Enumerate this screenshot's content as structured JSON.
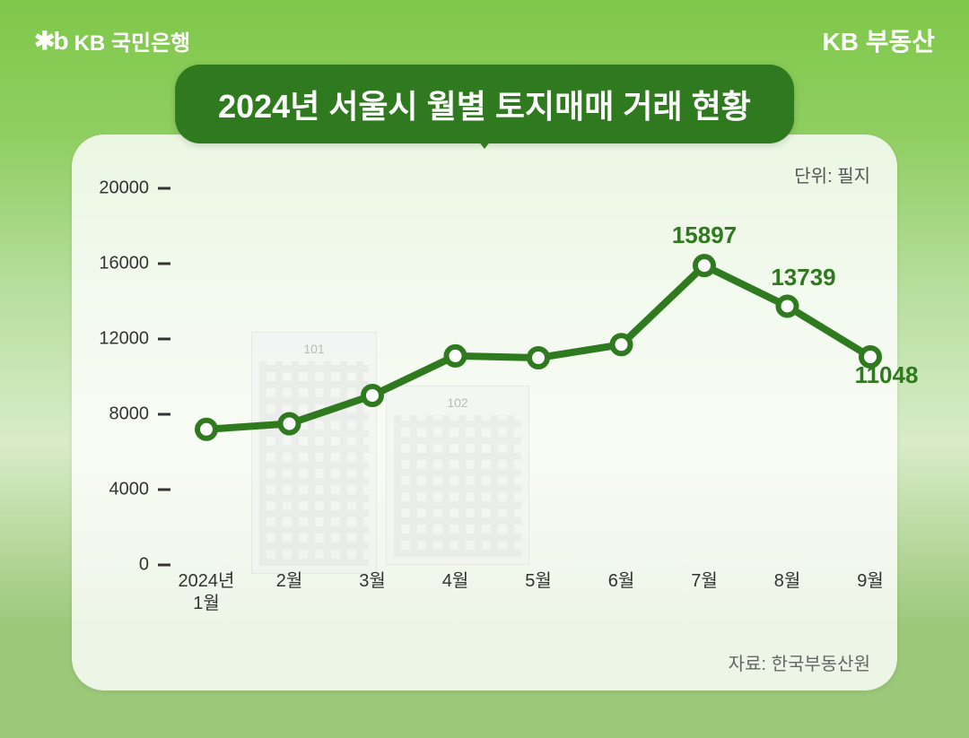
{
  "header": {
    "brand_logo": "✱b",
    "brand_left": "KB 국민은행",
    "brand_right": "KB 부동산"
  },
  "title": "2024년 서울시 월별 토지매매 거래 현황",
  "unit_label": "단위: 필지",
  "source_label": "자료: 한국부동산원",
  "chart": {
    "type": "line",
    "line_color": "#2f7a1f",
    "line_width": 8,
    "marker_fill": "#ffffff",
    "marker_stroke": "#2f7a1f",
    "marker_stroke_width": 6,
    "marker_radius": 10,
    "background_color": "rgba(255,255,255,0.82)",
    "title_color": "#ffffff",
    "title_bg": "#2f7a1f",
    "title_fontsize": 36,
    "axis_text_color": "#333333",
    "axis_fontsize": 20,
    "data_label_color": "#2f7a1f",
    "data_label_fontsize": 26,
    "ylim": [
      0,
      20000
    ],
    "ytick_step": 4000,
    "y_ticks": [
      0,
      4000,
      8000,
      12000,
      16000,
      20000
    ],
    "categories": [
      "2024년\n1월",
      "2월",
      "3월",
      "4월",
      "5월",
      "6월",
      "7월",
      "8월",
      "9월"
    ],
    "values": [
      7200,
      7500,
      9000,
      11100,
      11000,
      11700,
      15897,
      13739,
      11048
    ],
    "point_labels": {
      "6": "15897",
      "7": "13739",
      "8": "11048"
    },
    "label_offsets": {
      "6": {
        "dx": 0,
        "dy": -18
      },
      "7": {
        "dx": 18,
        "dy": -16
      },
      "8": {
        "dx": 18,
        "dy": 36
      }
    }
  },
  "buildings": {
    "b1_num": "101",
    "b2_num": "102"
  }
}
